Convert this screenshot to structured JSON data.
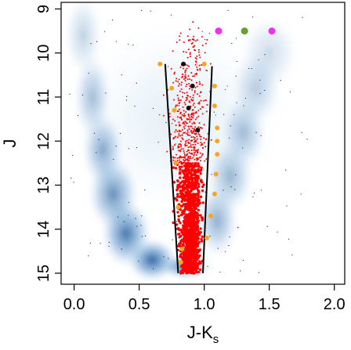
{
  "chart_data": {
    "type": "scatter",
    "title": "",
    "xlabel": "J-K",
    "xlabel_subscript": "s",
    "ylabel": "J",
    "xlim": [
      -0.1,
      2.08
    ],
    "ylim": [
      15.25,
      8.85
    ],
    "y_inverted": true,
    "grid": false,
    "legend": "none",
    "x_ticks": [
      0.0,
      0.5,
      1.0,
      1.5,
      2.0
    ],
    "x_tick_labels": [
      "0.0",
      "0.5",
      "1.0",
      "1.5",
      "2.0"
    ],
    "y_ticks": [
      9,
      10,
      11,
      12,
      13,
      14,
      15
    ],
    "y_tick_labels": [
      "9",
      "10",
      "11",
      "12",
      "13",
      "14",
      "15"
    ],
    "colors": {
      "density": "#0b4a8c",
      "members": "#ff0000",
      "orange": "#f5a623",
      "black": "#1a0a0a",
      "magenta": "#ee33ee",
      "green": "#66a033",
      "boundary": "#000000"
    },
    "density_blobs": [
      {
        "x": 0.6,
        "y": 14.7,
        "sx": 0.12,
        "sy": 0.35,
        "w": 1.0
      },
      {
        "x": 0.4,
        "y": 14.1,
        "sx": 0.12,
        "sy": 0.55,
        "w": 0.9
      },
      {
        "x": 0.3,
        "y": 13.2,
        "sx": 0.12,
        "sy": 0.6,
        "w": 0.75
      },
      {
        "x": 0.22,
        "y": 12.2,
        "sx": 0.1,
        "sy": 0.6,
        "w": 0.6
      },
      {
        "x": 0.14,
        "y": 11.0,
        "sx": 0.09,
        "sy": 0.7,
        "w": 0.45
      },
      {
        "x": 0.07,
        "y": 9.6,
        "sx": 0.09,
        "sy": 0.65,
        "w": 0.3
      },
      {
        "x": 1.1,
        "y": 13.8,
        "sx": 0.1,
        "sy": 0.6,
        "w": 0.55
      },
      {
        "x": 1.2,
        "y": 12.8,
        "sx": 0.11,
        "sy": 0.6,
        "w": 0.5
      },
      {
        "x": 1.3,
        "y": 11.8,
        "sx": 0.11,
        "sy": 0.6,
        "w": 0.45
      },
      {
        "x": 1.4,
        "y": 10.8,
        "sx": 0.12,
        "sy": 0.6,
        "w": 0.35
      },
      {
        "x": 1.5,
        "y": 10.0,
        "sx": 0.14,
        "sy": 0.6,
        "w": 0.25
      },
      {
        "x": 0.85,
        "y": 14.85,
        "sx": 0.12,
        "sy": 0.2,
        "w": 0.85
      },
      {
        "x": 0.8,
        "y": 11.5,
        "sx": 0.5,
        "sy": 1.6,
        "w": 0.12
      }
    ],
    "boundary_left": [
      [
        0.7,
        10.25
      ],
      [
        0.8,
        15.0
      ]
    ],
    "boundary_right": [
      [
        1.06,
        10.3
      ],
      [
        0.99,
        15.0
      ]
    ],
    "members_region": {
      "j_min": 9.2,
      "j_max": 15.0,
      "color_center_top": 0.9,
      "color_center_bottom": 0.89
    },
    "orange_points": [
      {
        "x": 0.66,
        "y": 10.25
      },
      {
        "x": 1.0,
        "y": 10.25
      },
      {
        "x": 1.08,
        "y": 10.75
      },
      {
        "x": 0.75,
        "y": 10.8
      },
      {
        "x": 1.08,
        "y": 11.2
      },
      {
        "x": 0.77,
        "y": 11.3
      },
      {
        "x": 1.1,
        "y": 11.7
      },
      {
        "x": 1.1,
        "y": 12.0
      },
      {
        "x": 1.1,
        "y": 12.3
      },
      {
        "x": 0.78,
        "y": 12.5
      },
      {
        "x": 1.09,
        "y": 12.75
      },
      {
        "x": 1.08,
        "y": 13.2
      },
      {
        "x": 0.8,
        "y": 13.5
      },
      {
        "x": 1.05,
        "y": 13.7
      },
      {
        "x": 1.02,
        "y": 14.2
      },
      {
        "x": 0.83,
        "y": 14.45
      },
      {
        "x": 0.82,
        "y": 14.75
      }
    ],
    "black_points": [
      {
        "x": 0.84,
        "y": 10.25
      },
      {
        "x": 0.91,
        "y": 10.75
      },
      {
        "x": 0.88,
        "y": 11.25
      },
      {
        "x": 0.95,
        "y": 11.75
      }
    ],
    "magenta_points": [
      {
        "x": 1.11,
        "y": 9.5
      },
      {
        "x": 1.52,
        "y": 9.5
      }
    ],
    "green_points": [
      {
        "x": 1.31,
        "y": 9.5
      }
    ]
  }
}
